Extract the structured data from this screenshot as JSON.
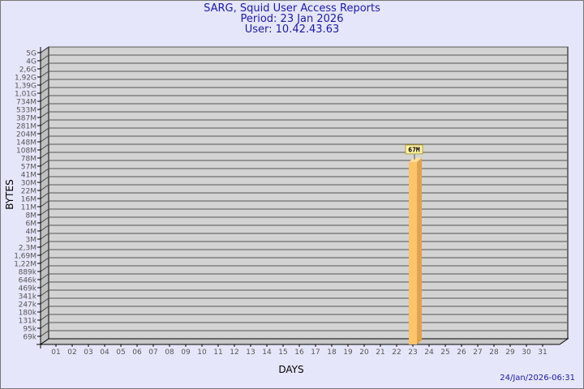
{
  "chart_data": {
    "type": "bar",
    "title": "SARG, Squid User Access Reports",
    "subtitle": [
      "Period: 23 Jan 2026",
      "User: 10.42.43.63"
    ],
    "xlabel": "DAYS",
    "ylabel": "BYTES",
    "y_scale": "log",
    "y_ticks": [
      "5G",
      "4G",
      "2,6G",
      "1,92G",
      "1,39G",
      "1,01G",
      "734M",
      "533M",
      "387M",
      "281M",
      "204M",
      "148M",
      "108M",
      "78M",
      "57M",
      "41M",
      "30M",
      "22M",
      "16M",
      "11M",
      "8M",
      "6M",
      "4M",
      "3M",
      "2,3M",
      "1,69M",
      "1,22M",
      "889k",
      "646k",
      "469k",
      "341k",
      "247k",
      "180k",
      "131k",
      "95k",
      "69k"
    ],
    "categories": [
      "01",
      "02",
      "03",
      "04",
      "05",
      "06",
      "07",
      "08",
      "09",
      "10",
      "11",
      "12",
      "13",
      "14",
      "15",
      "16",
      "17",
      "18",
      "19",
      "20",
      "21",
      "22",
      "23",
      "24",
      "25",
      "26",
      "27",
      "28",
      "29",
      "30",
      "31"
    ],
    "bars": [
      {
        "day": "23",
        "value": 67000000,
        "label": "67M"
      }
    ],
    "grid": true,
    "colors": {
      "bar": "#fdc46a",
      "bar_side": "#e0a24a",
      "plot_bg": "#d3d3d3",
      "title": "#1a1aa8"
    }
  },
  "footer": {
    "timestamp": "24/Jan/2026-06:31"
  }
}
